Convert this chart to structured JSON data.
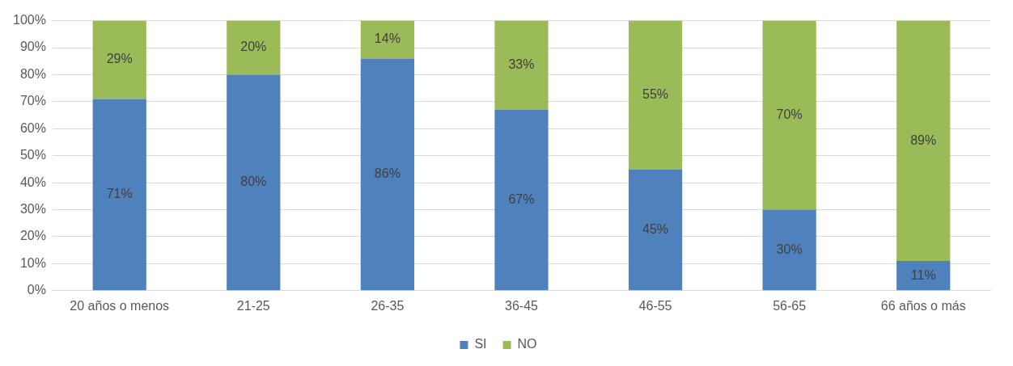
{
  "chart_data": {
    "type": "bar",
    "stacked": true,
    "categories": [
      "20 años o menos",
      "21-25",
      "26-35",
      "36-45",
      "46-55",
      "56-65",
      "66 años o más"
    ],
    "series": [
      {
        "name": "SI",
        "color": "#4f81bd",
        "values": [
          71,
          80,
          86,
          67,
          45,
          30,
          11
        ],
        "value_labels": [
          "71%",
          "80%",
          "86%",
          "67%",
          "45%",
          "30%",
          "11%"
        ]
      },
      {
        "name": "NO",
        "color": "#9bbb59",
        "values": [
          29,
          20,
          14,
          33,
          55,
          70,
          89
        ],
        "value_labels": [
          "29%",
          "20%",
          "14%",
          "33%",
          "55%",
          "70%",
          "89%"
        ]
      }
    ],
    "ylim": [
      0,
      100
    ],
    "yticks": [
      {
        "value": 0,
        "label": "0%"
      },
      {
        "value": 10,
        "label": "10%"
      },
      {
        "value": 20,
        "label": "20%"
      },
      {
        "value": 30,
        "label": "30%"
      },
      {
        "value": 40,
        "label": "40%"
      },
      {
        "value": 50,
        "label": "50%"
      },
      {
        "value": 60,
        "label": "60%"
      },
      {
        "value": 70,
        "label": "70%"
      },
      {
        "value": 80,
        "label": "80%"
      },
      {
        "value": 90,
        "label": "90%"
      },
      {
        "value": 100,
        "label": "100%"
      }
    ],
    "grid": "y",
    "legend": "bottom"
  }
}
